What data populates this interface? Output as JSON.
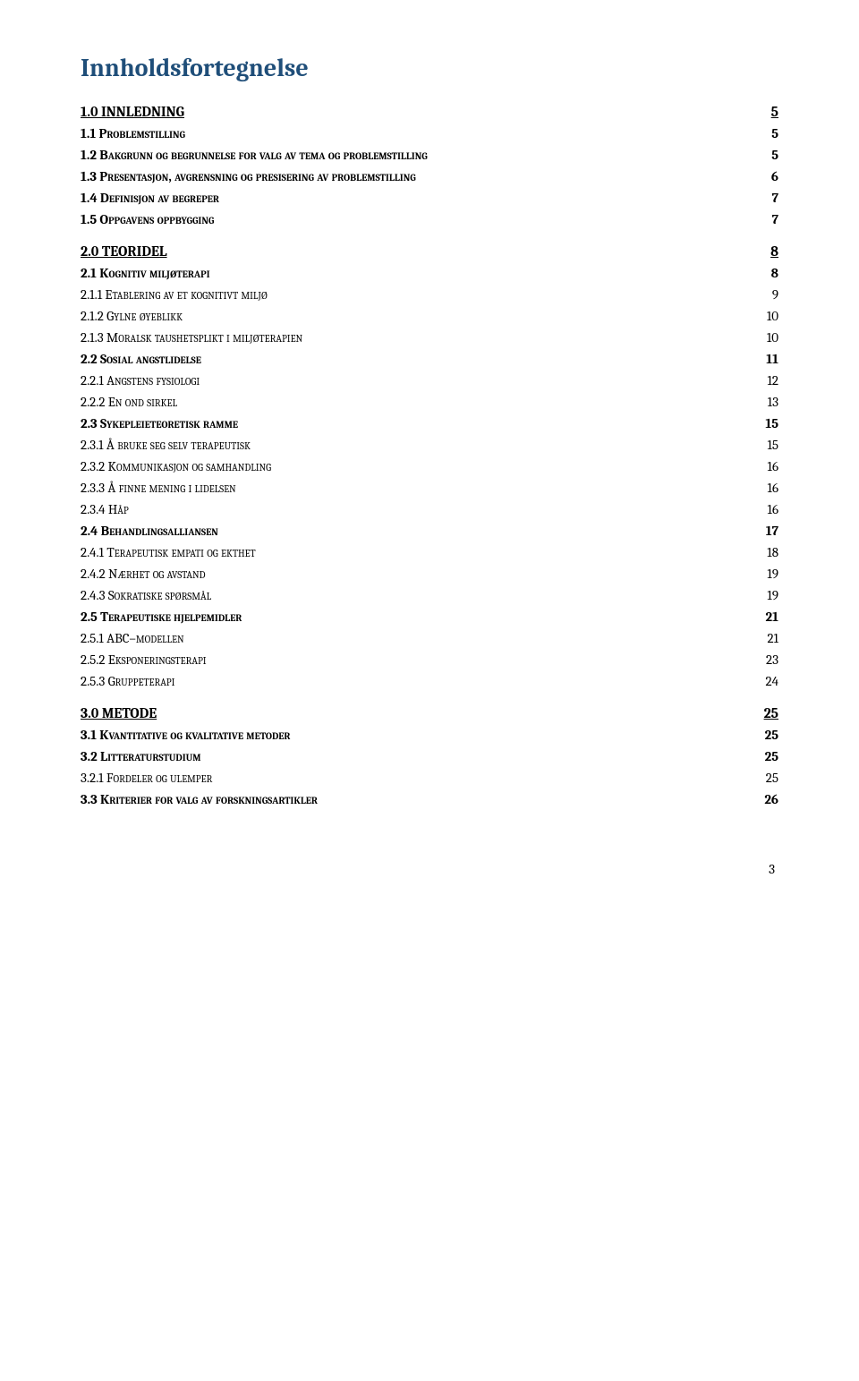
{
  "title": "Innholdsfortegnelse",
  "footer_page": "3",
  "colors": {
    "title": "#1f4e79",
    "text": "#000000",
    "background": "#ffffff"
  },
  "sections": [
    {
      "entries": [
        {
          "level": 0,
          "label": "1.0 INNLEDNING",
          "page": "5"
        },
        {
          "level": 1,
          "label": "1.1 Problemstilling",
          "page": "5"
        },
        {
          "level": 1,
          "label": "1.2 Bakgrunn og begrunnelse for valg av tema og problemstilling",
          "page": "5"
        },
        {
          "level": 1,
          "label": "1.3 Presentasjon, avgrensning og presisering av problemstilling",
          "page": "6"
        },
        {
          "level": 1,
          "label": "1.4 Definisjon av begreper",
          "page": "7"
        },
        {
          "level": 1,
          "label": "1.5 Oppgavens oppbygging",
          "page": "7"
        }
      ]
    },
    {
      "entries": [
        {
          "level": 0,
          "label": "2.0 TEORIDEL",
          "page": "8"
        },
        {
          "level": 1,
          "label": "2.1 Kognitiv miljøterapi",
          "page": "8"
        },
        {
          "level": 2,
          "label": "2.1.1 Etablering av et kognitivt miljø",
          "page": "9"
        },
        {
          "level": 2,
          "label": "2.1.2 Gylne øyeblikk",
          "page": "10"
        },
        {
          "level": 2,
          "label": "2.1.3 Moralsk taushetsplikt i miljøterapien",
          "page": "10"
        },
        {
          "level": 1,
          "label": "2.2 Sosial angstlidelse",
          "page": "11"
        },
        {
          "level": 2,
          "label": "2.2.1 Angstens fysiologi",
          "page": "12"
        },
        {
          "level": 2,
          "label": "2.2.2 En ond sirkel",
          "page": "13"
        },
        {
          "level": 1,
          "label": "2.3 Sykepleieteoretisk ramme",
          "page": "15"
        },
        {
          "level": 2,
          "label": "2.3.1 Å bruke seg selv terapeutisk",
          "page": "15"
        },
        {
          "level": 2,
          "label": "2.3.2 Kommunikasjon og samhandling",
          "page": "16"
        },
        {
          "level": 2,
          "label": "2.3.3 Å finne mening i lidelsen",
          "page": "16"
        },
        {
          "level": 2,
          "label": "2.3.4 Håp",
          "page": "16"
        },
        {
          "level": 1,
          "label": "2.4 Behandlingsalliansen",
          "page": "17"
        },
        {
          "level": 2,
          "label": "2.4.1 Terapeutisk empati og ekthet",
          "page": "18"
        },
        {
          "level": 2,
          "label": "2.4.2 Nærhet og avstand",
          "page": "19"
        },
        {
          "level": 2,
          "label": "2.4.3 Sokratiske spørsmål",
          "page": "19"
        },
        {
          "level": 1,
          "label": "2.5 Terapeutiske hjelpemidler",
          "page": "21"
        },
        {
          "level": 2,
          "label": "2.5.1 ABC–modellen",
          "page": "21"
        },
        {
          "level": 2,
          "label": "2.5.2 Eksponeringsterapi",
          "page": "23"
        },
        {
          "level": 2,
          "label": "2.5.3 Gruppeterapi",
          "page": "24"
        }
      ]
    },
    {
      "entries": [
        {
          "level": 0,
          "label": "3.0 METODE",
          "page": "25"
        },
        {
          "level": 1,
          "label": "3.1 Kvantitative og kvalitative metoder",
          "page": "25"
        },
        {
          "level": 1,
          "label": "3.2 Litteraturstudium",
          "page": "25"
        },
        {
          "level": 2,
          "label": "3.2.1 Fordeler og ulemper",
          "page": "25"
        },
        {
          "level": 1,
          "label": "3.3 Kriterier for valg av forskningsartikler",
          "page": "26"
        }
      ]
    }
  ]
}
